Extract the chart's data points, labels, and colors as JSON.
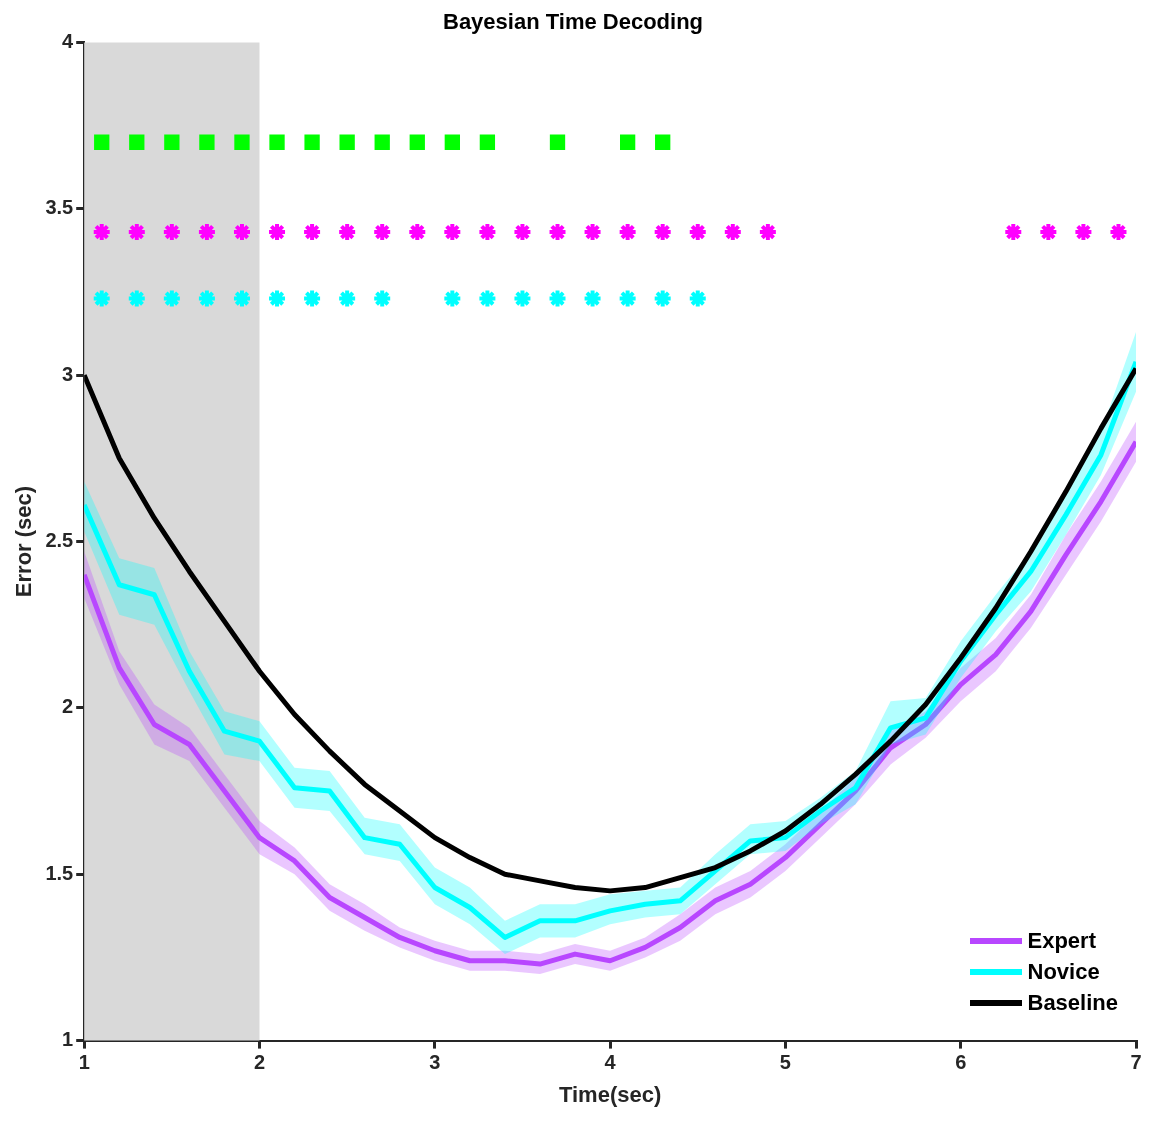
{
  "chart_data": {
    "type": "line",
    "title": "Bayesian Time Decoding",
    "xlabel": "Time(sec)",
    "ylabel": "Error (sec)",
    "x": [
      1,
      1.2,
      1.4,
      1.6,
      1.8,
      2,
      2.2,
      2.4,
      2.6,
      2.8,
      3,
      3.2,
      3.4,
      3.6,
      3.8,
      4,
      4.2,
      4.4,
      4.6,
      4.8,
      5,
      5.2,
      5.4,
      5.6,
      5.8,
      6,
      6.2,
      6.4,
      6.6,
      6.8,
      7
    ],
    "series": [
      {
        "name": "Expert",
        "color": "#b847ff",
        "values": [
          2.4,
          2.12,
          1.95,
          1.89,
          1.75,
          1.61,
          1.54,
          1.43,
          1.37,
          1.31,
          1.27,
          1.24,
          1.24,
          1.23,
          1.26,
          1.24,
          1.28,
          1.34,
          1.42,
          1.47,
          1.55,
          1.65,
          1.75,
          1.88,
          1.95,
          2.07,
          2.16,
          2.29,
          2.46,
          2.62,
          2.8
        ],
        "lower": [
          2.33,
          2.07,
          1.89,
          1.84,
          1.7,
          1.56,
          1.5,
          1.39,
          1.33,
          1.28,
          1.24,
          1.21,
          1.21,
          1.2,
          1.23,
          1.21,
          1.25,
          1.3,
          1.38,
          1.43,
          1.51,
          1.61,
          1.71,
          1.83,
          1.91,
          2.02,
          2.11,
          2.24,
          2.4,
          2.56,
          2.74
        ],
        "upper": [
          2.47,
          2.17,
          2.01,
          1.94,
          1.8,
          1.66,
          1.58,
          1.47,
          1.41,
          1.34,
          1.3,
          1.27,
          1.27,
          1.26,
          1.29,
          1.27,
          1.31,
          1.38,
          1.46,
          1.51,
          1.59,
          1.69,
          1.79,
          1.93,
          1.99,
          2.12,
          2.21,
          2.34,
          2.52,
          2.68,
          2.86
        ]
      },
      {
        "name": "Novice",
        "color": "#00ffff",
        "values": [
          2.61,
          2.37,
          2.34,
          2.11,
          1.93,
          1.9,
          1.76,
          1.75,
          1.61,
          1.59,
          1.46,
          1.4,
          1.31,
          1.36,
          1.36,
          1.39,
          1.41,
          1.42,
          1.51,
          1.6,
          1.61,
          1.69,
          1.76,
          1.94,
          1.97,
          2.14,
          2.28,
          2.41,
          2.58,
          2.76,
          3.04
        ],
        "lower": [
          2.53,
          2.28,
          2.25,
          2.05,
          1.86,
          1.84,
          1.7,
          1.69,
          1.56,
          1.54,
          1.41,
          1.35,
          1.26,
          1.31,
          1.31,
          1.35,
          1.37,
          1.38,
          1.47,
          1.56,
          1.57,
          1.65,
          1.71,
          1.89,
          1.92,
          2.09,
          2.23,
          2.35,
          2.52,
          2.7,
          2.95
        ],
        "upper": [
          2.68,
          2.45,
          2.42,
          2.17,
          1.99,
          1.96,
          1.82,
          1.81,
          1.67,
          1.65,
          1.52,
          1.46,
          1.36,
          1.41,
          1.41,
          1.44,
          1.45,
          1.46,
          1.56,
          1.65,
          1.66,
          1.73,
          1.81,
          2.02,
          2.03,
          2.2,
          2.34,
          2.47,
          2.64,
          2.83,
          3.13
        ]
      },
      {
        "name": "Baseline",
        "color": "#000000",
        "values": [
          3.0,
          2.75,
          2.57,
          2.41,
          2.26,
          2.11,
          1.98,
          1.87,
          1.77,
          1.69,
          1.61,
          1.55,
          1.5,
          1.48,
          1.46,
          1.45,
          1.46,
          1.49,
          1.52,
          1.57,
          1.63,
          1.71,
          1.8,
          1.9,
          2.01,
          2.15,
          2.3,
          2.47,
          2.65,
          2.84,
          3.02
        ]
      },
      {
        "type": "scatter",
        "marker": "square",
        "color": "#00ff00",
        "x": [
          1.1,
          1.3,
          1.5,
          1.7,
          1.9,
          2.1,
          2.3,
          2.5,
          2.7,
          2.9,
          3.1,
          3.3,
          3.7,
          4.1,
          4.3
        ],
        "values": [
          3.7,
          3.7,
          3.7,
          3.7,
          3.7,
          3.7,
          3.7,
          3.7,
          3.7,
          3.7,
          3.7,
          3.7,
          3.7,
          3.7,
          3.7
        ]
      },
      {
        "type": "scatter",
        "marker": "cross",
        "color": "#ff00ff",
        "x": [
          1.1,
          1.3,
          1.5,
          1.7,
          1.9,
          2.1,
          2.3,
          2.5,
          2.7,
          2.9,
          3.1,
          3.3,
          3.5,
          3.7,
          3.9,
          4.1,
          4.3,
          4.5,
          4.7,
          4.9,
          6.3,
          6.5,
          6.7,
          6.9
        ],
        "values": [
          3.43,
          3.43,
          3.43,
          3.43,
          3.43,
          3.43,
          3.43,
          3.43,
          3.43,
          3.43,
          3.43,
          3.43,
          3.43,
          3.43,
          3.43,
          3.43,
          3.43,
          3.43,
          3.43,
          3.43,
          3.43,
          3.43,
          3.43,
          3.43
        ]
      },
      {
        "type": "scatter",
        "marker": "cross",
        "color": "#00ffff",
        "x": [
          1.1,
          1.3,
          1.5,
          1.7,
          1.9,
          2.1,
          2.3,
          2.5,
          2.7,
          3.1,
          3.3,
          3.5,
          3.7,
          3.9,
          4.1,
          4.3,
          4.5
        ],
        "values": [
          3.23,
          3.23,
          3.23,
          3.23,
          3.23,
          3.23,
          3.23,
          3.23,
          3.23,
          3.23,
          3.23,
          3.23,
          3.23,
          3.23,
          3.23,
          3.23,
          3.23
        ]
      }
    ],
    "bands": [
      {
        "axis": "x",
        "from": 1,
        "to": 2,
        "color": "#d9d9d9"
      }
    ],
    "xlim": [
      1,
      7
    ],
    "xticks": [
      1,
      2,
      3,
      4,
      5,
      6,
      7
    ],
    "ylim": [
      1,
      4
    ],
    "yticks": [
      1,
      1.5,
      2,
      2.5,
      3,
      3.5,
      4
    ],
    "grid": false,
    "legend": "bottom right"
  }
}
